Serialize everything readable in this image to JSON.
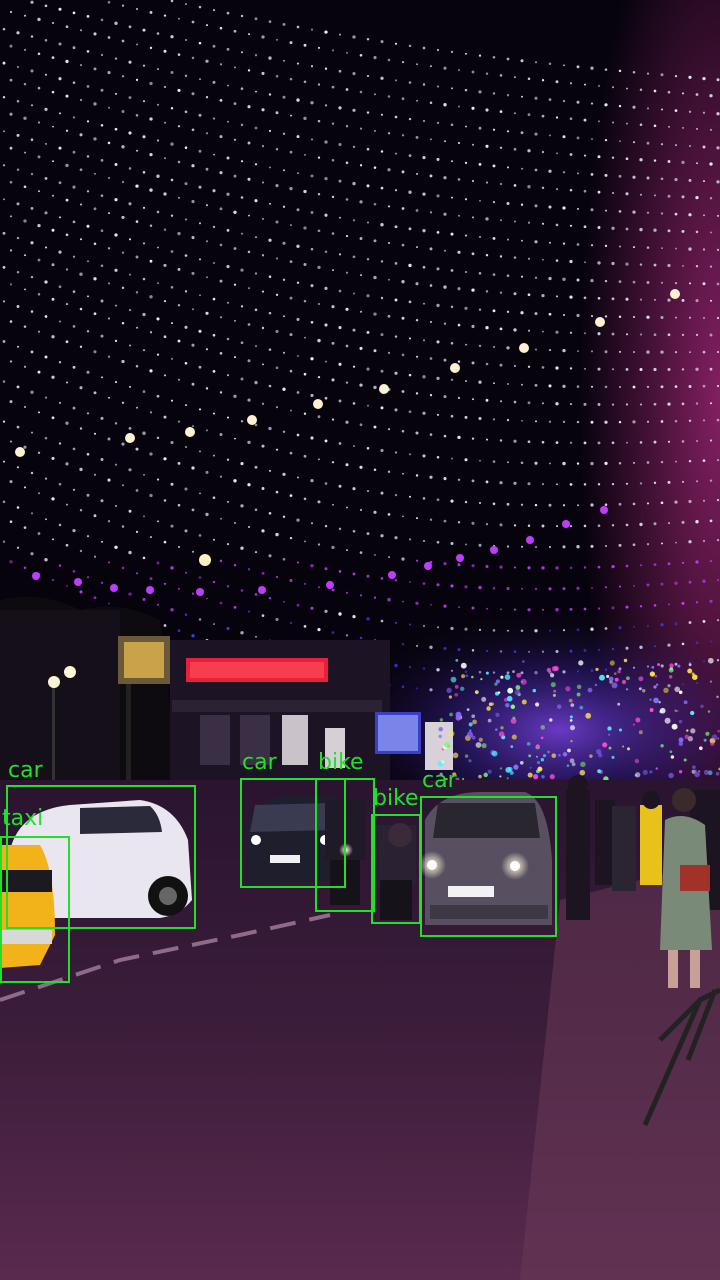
{
  "colors": {
    "detection_box": "#22e02a",
    "sky": "#07030d",
    "road": "#3a1d36",
    "fairy_light_white": "#e9ecff",
    "fairy_light_purple": "#c23cff",
    "fairy_light_blue": "#3a3cff"
  },
  "detections": [
    {
      "label": "car"
    },
    {
      "label": "taxi"
    },
    {
      "label": "car"
    },
    {
      "label": "bike"
    },
    {
      "label": "bike"
    },
    {
      "label": "car"
    }
  ]
}
